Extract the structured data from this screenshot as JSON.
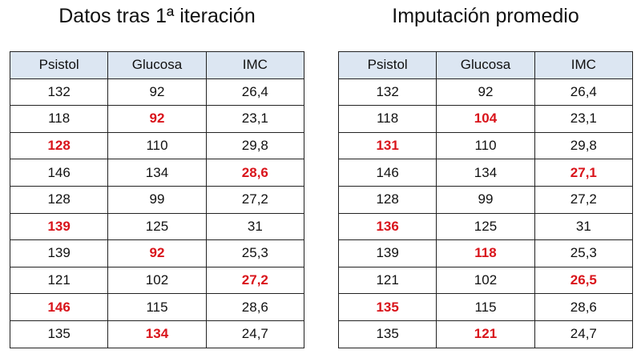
{
  "highlight_color": "#d9141b",
  "tables": [
    {
      "title": "Datos tras 1ª iteración",
      "columns": [
        "Psistol",
        "Glucosa",
        "IMC"
      ],
      "rows": [
        [
          "132",
          "92",
          "26,4"
        ],
        [
          "118",
          "92",
          "23,1"
        ],
        [
          "128",
          "110",
          "29,8"
        ],
        [
          "146",
          "134",
          "28,6"
        ],
        [
          "128",
          "99",
          "27,2"
        ],
        [
          "139",
          "125",
          "31"
        ],
        [
          "139",
          "92",
          "25,3"
        ],
        [
          "121",
          "102",
          "27,2"
        ],
        [
          "146",
          "115",
          "28,6"
        ],
        [
          "135",
          "134",
          "24,7"
        ]
      ],
      "highlighted": [
        [
          1,
          1
        ],
        [
          2,
          0
        ],
        [
          3,
          2
        ],
        [
          5,
          0
        ],
        [
          6,
          1
        ],
        [
          7,
          2
        ],
        [
          8,
          0
        ],
        [
          9,
          1
        ]
      ]
    },
    {
      "title": "Imputación promedio",
      "columns": [
        "Psistol",
        "Glucosa",
        "IMC"
      ],
      "rows": [
        [
          "132",
          "92",
          "26,4"
        ],
        [
          "118",
          "104",
          "23,1"
        ],
        [
          "131",
          "110",
          "29,8"
        ],
        [
          "146",
          "134",
          "27,1"
        ],
        [
          "128",
          "99",
          "27,2"
        ],
        [
          "136",
          "125",
          "31"
        ],
        [
          "139",
          "118",
          "25,3"
        ],
        [
          "121",
          "102",
          "26,5"
        ],
        [
          "135",
          "115",
          "28,6"
        ],
        [
          "135",
          "121",
          "24,7"
        ]
      ],
      "highlighted": [
        [
          1,
          1
        ],
        [
          2,
          0
        ],
        [
          3,
          2
        ],
        [
          5,
          0
        ],
        [
          6,
          1
        ],
        [
          7,
          2
        ],
        [
          8,
          0
        ],
        [
          9,
          1
        ]
      ]
    }
  ]
}
